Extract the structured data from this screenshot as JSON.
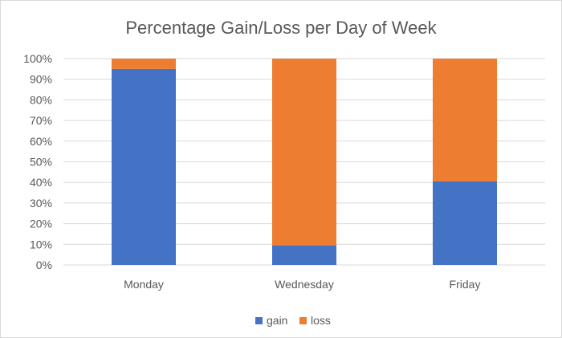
{
  "chart_data": {
    "type": "bar",
    "stacked": true,
    "title": "Percentage Gain/Loss per Day of Week",
    "categories": [
      "Monday",
      "Wednesday",
      "Friday"
    ],
    "series": [
      {
        "name": "gain",
        "values": [
          95,
          9.5,
          40.5
        ],
        "color": "#4472c4"
      },
      {
        "name": "loss",
        "values": [
          5,
          90.5,
          59.5
        ],
        "color": "#ed7d31"
      }
    ],
    "ylim": [
      0,
      100
    ],
    "yticks": [
      "0%",
      "10%",
      "20%",
      "30%",
      "40%",
      "50%",
      "60%",
      "70%",
      "80%",
      "90%",
      "100%"
    ],
    "grid": true,
    "legend": "bottom",
    "gridline_color": "#d9d9d9"
  }
}
